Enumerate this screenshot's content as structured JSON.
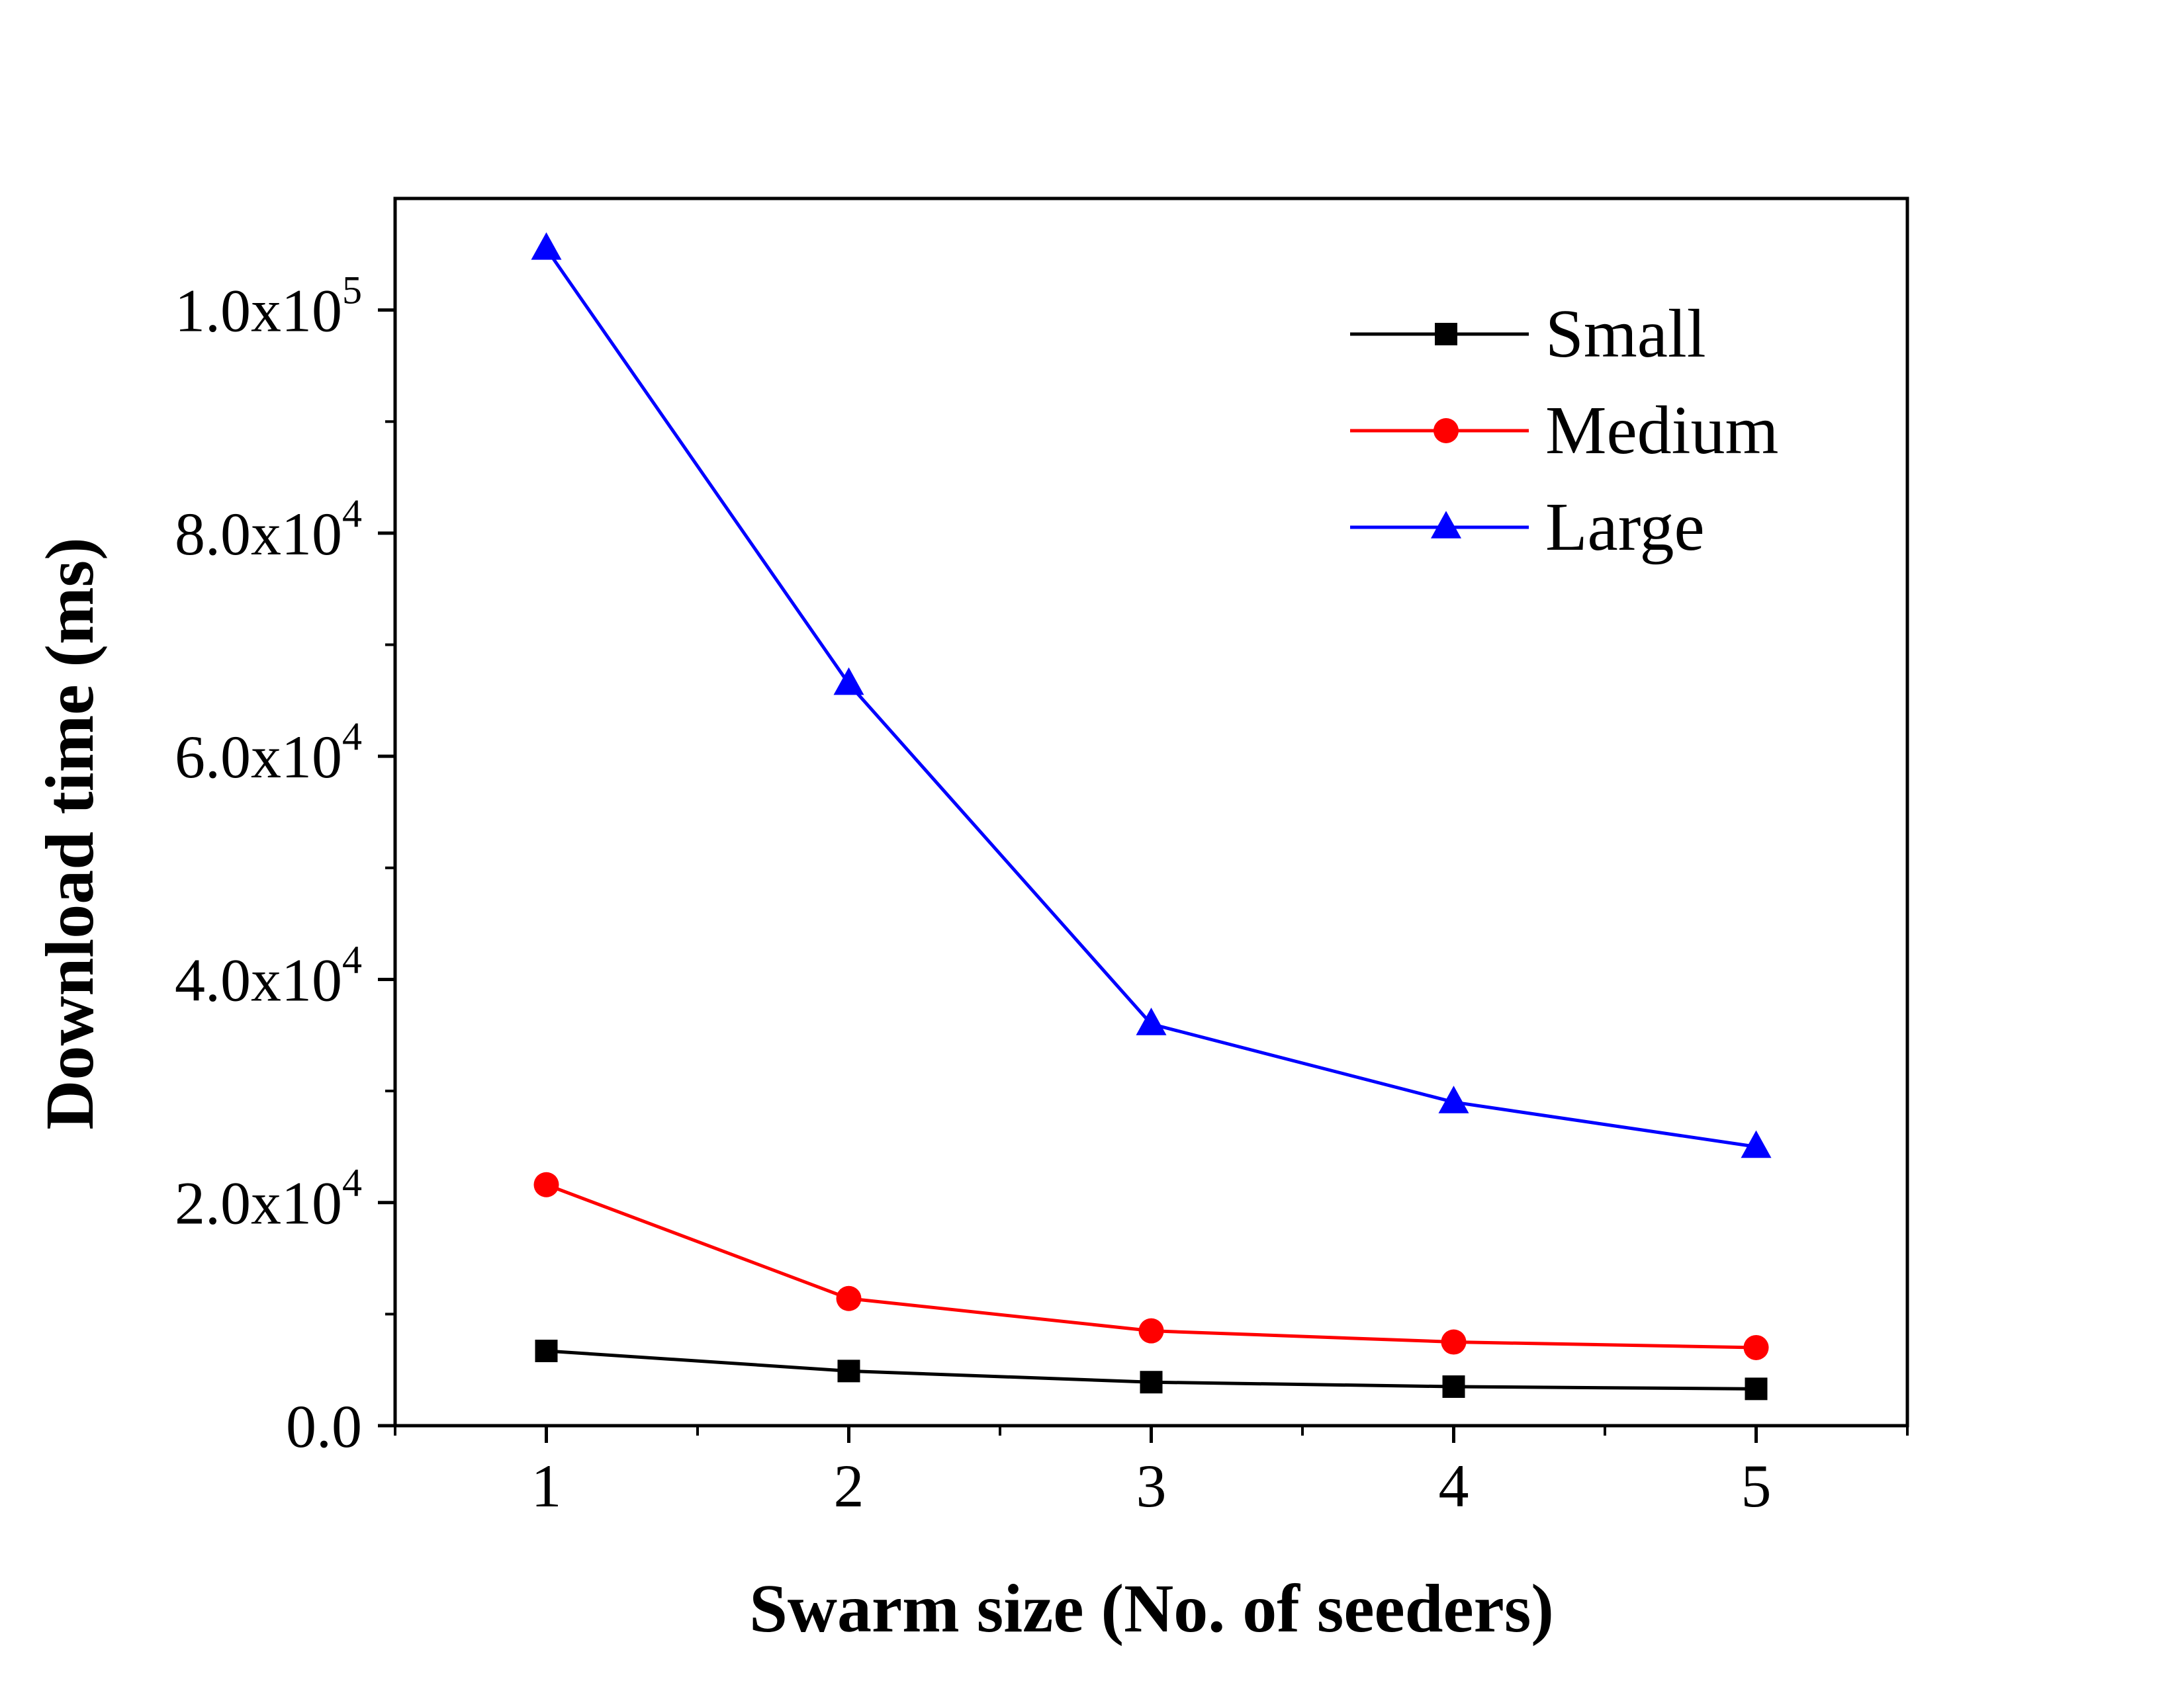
{
  "chart_data": {
    "type": "line",
    "title": "",
    "xlabel": "Swarm size (No. of seeders)",
    "ylabel": "Download time (ms)",
    "xlim": [
      0.5,
      5.5
    ],
    "ylim": [
      0,
      110000
    ],
    "x": [
      1,
      2,
      3,
      4,
      5
    ],
    "xticks": [
      {
        "value": 1,
        "label": "1"
      },
      {
        "value": 2,
        "label": "2"
      },
      {
        "value": 3,
        "label": "3"
      },
      {
        "value": 4,
        "label": "4"
      },
      {
        "value": 5,
        "label": "5"
      }
    ],
    "yticks": [
      {
        "value": 0,
        "mantissa": "0.0",
        "exp": ""
      },
      {
        "value": 20000,
        "mantissa": "2.0x10",
        "exp": "4"
      },
      {
        "value": 40000,
        "mantissa": "4.0x10",
        "exp": "4"
      },
      {
        "value": 60000,
        "mantissa": "6.0x10",
        "exp": "4"
      },
      {
        "value": 80000,
        "mantissa": "8.0x10",
        "exp": "4"
      },
      {
        "value": 100000,
        "mantissa": "1.0x10",
        "exp": "5"
      }
    ],
    "grid": false,
    "legend_position": "top-right",
    "series": [
      {
        "name": "Small",
        "color": "#000000",
        "marker": "square",
        "values": [
          6700,
          4900,
          3900,
          3500,
          3300
        ]
      },
      {
        "name": "Medium",
        "color": "#ff0000",
        "marker": "circle",
        "values": [
          21600,
          11400,
          8500,
          7500,
          7000
        ]
      },
      {
        "name": "Large",
        "color": "#0000ff",
        "marker": "triangle",
        "values": [
          105500,
          66500,
          36000,
          29000,
          25000
        ]
      }
    ]
  }
}
